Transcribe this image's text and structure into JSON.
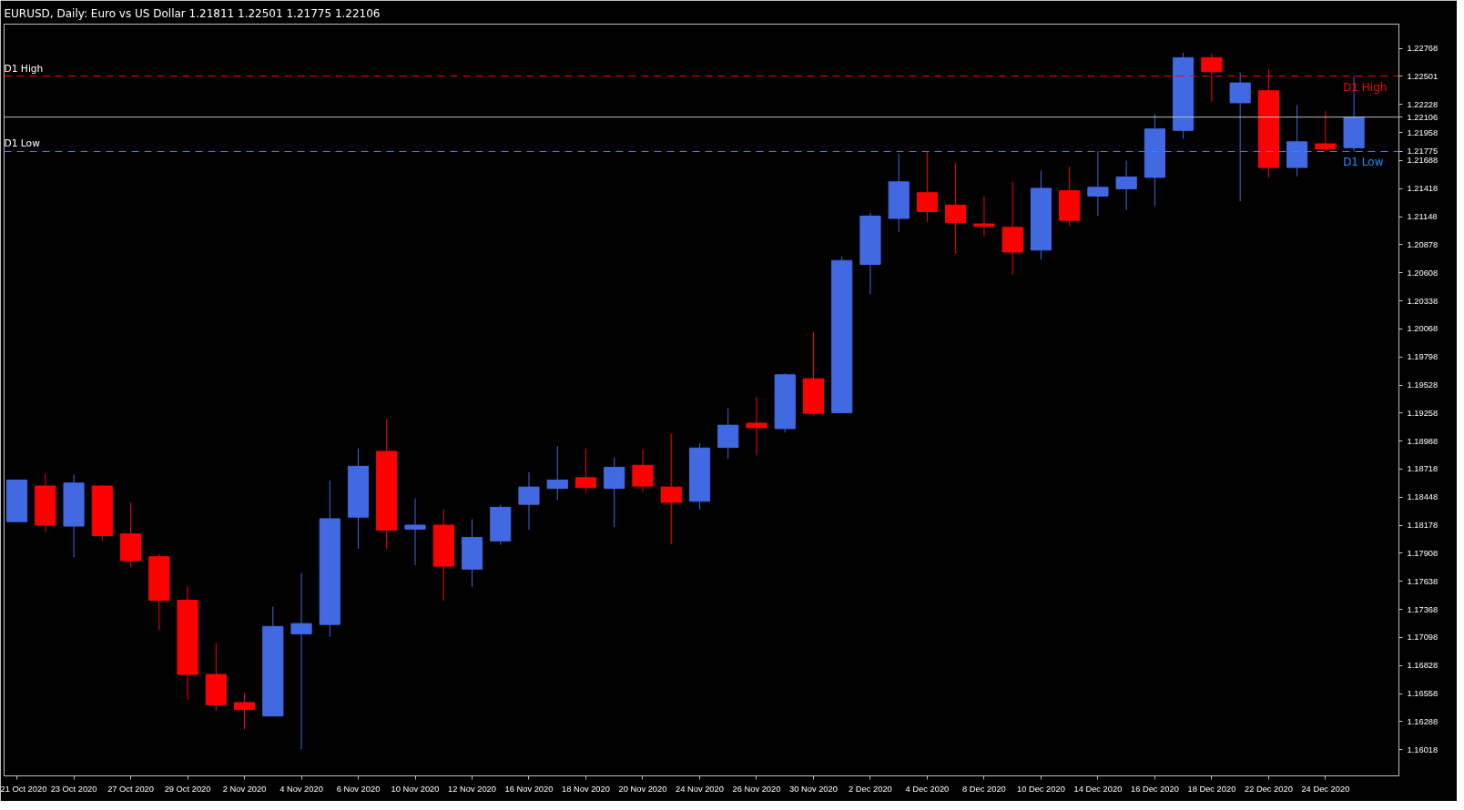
{
  "chart_data": {
    "type": "candlestick",
    "title": "EURUSD, Daily:  Euro vs US Dollar  1.21811 1.22501 1.21775 1.22106",
    "categories": [
      "21 Oct 2020",
      null,
      "23 Oct 2020",
      null,
      "27 Oct 2020",
      null,
      "29 Oct 2020",
      null,
      "2 Nov 2020",
      null,
      "4 Nov 2020",
      null,
      "6 Nov 2020",
      null,
      "10 Nov 2020",
      null,
      "12 Nov 2020",
      null,
      "16 Nov 2020",
      null,
      "18 Nov 2020",
      null,
      "20 Nov 2020",
      null,
      "24 Nov 2020",
      null,
      "26 Nov 2020",
      null,
      "30 Nov 2020",
      null,
      "2 Dec 2020",
      null,
      "4 Dec 2020",
      null,
      "8 Dec 2020",
      null,
      "10 Dec 2020",
      null,
      "14 Dec 2020",
      null,
      "16 Dec 2020",
      null,
      "18 Dec 2020",
      null,
      "22 Dec 2020",
      null,
      "24 Dec 2020",
      null
    ],
    "ohlc": [
      [
        1.18213,
        1.18613,
        1.18213,
        1.18613
      ],
      [
        1.18555,
        1.18674,
        1.18113,
        1.18179
      ],
      [
        1.1817,
        1.18665,
        1.1787,
        1.18584
      ],
      [
        1.18555,
        1.18565,
        1.18027,
        1.18079
      ],
      [
        1.18094,
        1.18398,
        1.17775,
        1.17837
      ],
      [
        1.17875,
        1.17899,
        1.1717,
        1.17456
      ],
      [
        1.17456,
        1.17589,
        1.16499,
        1.16742
      ],
      [
        1.16742,
        1.17046,
        1.16394,
        1.16451
      ],
      [
        1.16471,
        1.16561,
        1.16213,
        1.16404
      ],
      [
        1.16342,
        1.17394,
        1.16342,
        1.17204
      ],
      [
        1.17132,
        1.17718,
        1.16023,
        1.17232
      ],
      [
        1.17223,
        1.18608,
        1.17104,
        1.18241
      ],
      [
        1.18256,
        1.18917,
        1.17951,
        1.18746
      ],
      [
        1.18889,
        1.19203,
        1.17951,
        1.18132
      ],
      [
        1.18141,
        1.18436,
        1.17794,
        1.18179
      ],
      [
        1.18179,
        1.18327,
        1.17451,
        1.17784
      ],
      [
        1.17756,
        1.18236,
        1.17584,
        1.1806
      ],
      [
        1.18027,
        1.18375,
        1.17989,
        1.18351
      ],
      [
        1.18379,
        1.18689,
        1.18137,
        1.18546
      ],
      [
        1.18532,
        1.18941,
        1.18422,
        1.18613
      ],
      [
        1.18636,
        1.18917,
        1.18489,
        1.18541
      ],
      [
        1.18532,
        1.18831,
        1.1816,
        1.18736
      ],
      [
        1.18755,
        1.18908,
        1.18498,
        1.18555
      ],
      [
        1.18546,
        1.1906,
        1.17994,
        1.18398
      ],
      [
        1.18408,
        1.18965,
        1.18332,
        1.18922
      ],
      [
        1.18927,
        1.19303,
        1.18817,
        1.19141
      ],
      [
        1.1916,
        1.19412,
        1.18851,
        1.19117
      ],
      [
        1.19108,
        1.19641,
        1.19069,
        1.19626
      ],
      [
        1.19588,
        1.20041,
        1.19236,
        1.19255
      ],
      [
        1.1926,
        1.20764,
        1.1926,
        1.20726
      ],
      [
        1.20688,
        1.21188,
        1.20402,
        1.21154
      ],
      [
        1.21131,
        1.21754,
        1.21002,
        1.21483
      ],
      [
        1.21378,
        1.21778,
        1.21097,
        1.21197
      ],
      [
        1.21259,
        1.21668,
        1.20788,
        1.21092
      ],
      [
        1.21078,
        1.2135,
        1.20954,
        1.21054
      ],
      [
        1.21045,
        1.21483,
        1.20588,
        1.20807
      ],
      [
        1.20826,
        1.21592,
        1.20735,
        1.21421
      ],
      [
        1.21397,
        1.2163,
        1.21054,
        1.21112
      ],
      [
        1.21345,
        1.21778,
        1.21154,
        1.2143
      ],
      [
        1.21416,
        1.21687,
        1.21211,
        1.2153
      ],
      [
        1.21526,
        1.2213,
        1.2125,
        1.21992
      ],
      [
        1.21978,
        1.22725,
        1.21897,
        1.22678
      ],
      [
        1.22678,
        1.22716,
        1.22254,
        1.22544
      ],
      [
        1.22244,
        1.22535,
        1.21297,
        1.22435
      ],
      [
        1.22359,
        1.22568,
        1.21521,
        1.21621
      ],
      [
        1.21621,
        1.22221,
        1.21535,
        1.21868
      ],
      [
        1.21849,
        1.22163,
        1.21773,
        1.21802
      ],
      [
        1.21811,
        1.22501,
        1.21775,
        1.22106
      ]
    ],
    "colors": [
      "#4169e1",
      "#ff0000",
      "#4169e1",
      "#ff0000",
      "#ff0000",
      "#ff0000",
      "#ff0000",
      "#ff0000",
      "#ff0000",
      "#4169e1",
      "#4169e1",
      "#4169e1",
      "#4169e1",
      "#ff0000",
      "#4169e1",
      "#ff0000",
      "#4169e1",
      "#4169e1",
      "#4169e1",
      "#4169e1",
      "#ff0000",
      "#4169e1",
      "#ff0000",
      "#ff0000",
      "#4169e1",
      "#4169e1",
      "#ff0000",
      "#4169e1",
      "#ff0000",
      "#4169e1",
      "#4169e1",
      "#4169e1",
      "#ff0000",
      "#ff0000",
      "#ff0000",
      "#ff0000",
      "#4169e1",
      "#ff0000",
      "#4169e1",
      "#4169e1",
      "#4169e1",
      "#4169e1",
      "#ff0000",
      "#4169e1",
      "#ff0000",
      "#4169e1",
      "#ff0000",
      "#4169e1"
    ],
    "ylim": [
      1.15766,
      1.23001
    ],
    "yticks": [
      1.16018,
      1.16288,
      1.16558,
      1.16828,
      1.17098,
      1.17368,
      1.17638,
      1.17908,
      1.18178,
      1.18448,
      1.18718,
      1.18988,
      1.19258,
      1.19528,
      1.19798,
      1.20068,
      1.20338,
      1.20608,
      1.20878,
      1.21148,
      1.21418,
      1.21688,
      {
        "value": 1.21775,
        "label": "1.21775"
      },
      1.21958,
      {
        "value": 1.22106,
        "label": "1.22106"
      },
      1.22228,
      {
        "value": 1.22501,
        "label": "1.22501"
      },
      1.22768
    ],
    "ref_lines": [
      {
        "axis": "y",
        "value": 1.22501,
        "label": "D1 High",
        "color": "#ff0000",
        "line_style": "dashed"
      },
      {
        "axis": "y",
        "value": 1.22106,
        "label": null,
        "color": "#c0c0c0",
        "line_style": "solid"
      },
      {
        "axis": "y",
        "value": 1.21775,
        "label": "D1 Low",
        "color": "#1e90ff",
        "line_style": "dashed"
      }
    ],
    "grid": false
  }
}
